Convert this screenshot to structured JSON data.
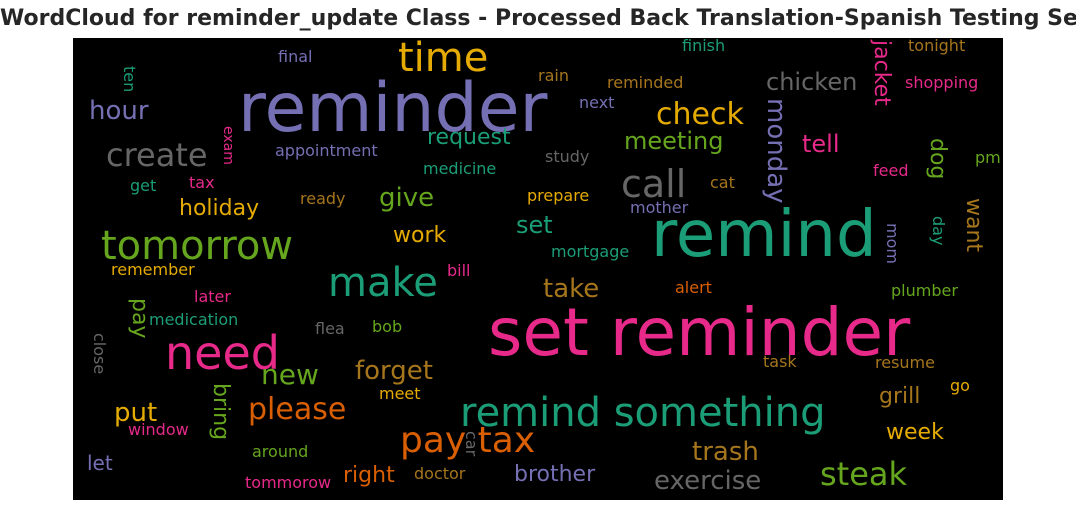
{
  "title": "WordCloud for reminder_update Class - Processed Back Translation-Spanish Testing Set",
  "palette": {
    "background": "#000000",
    "purple": "#7570b3",
    "green": "#1b9e77",
    "pink": "#e7298a",
    "orange": "#d95f02",
    "lime": "#66a61e",
    "gold": "#e6ab02",
    "brown": "#a6761d",
    "gray": "#666666"
  },
  "words": [
    {
      "text": "reminder",
      "color": "#7570b3"
    },
    {
      "text": "set reminder",
      "color": "#e7298a"
    },
    {
      "text": "remind",
      "color": "#1b9e77"
    },
    {
      "text": "tomorrow",
      "color": "#66a61e"
    },
    {
      "text": "need",
      "color": "#e7298a"
    },
    {
      "text": "time",
      "color": "#e6ab02"
    },
    {
      "text": "remind something",
      "color": "#1b9e77"
    },
    {
      "text": "make",
      "color": "#1b9e77"
    },
    {
      "text": "call",
      "color": "#666666"
    },
    {
      "text": "create",
      "color": "#666666"
    },
    {
      "text": "pay tax",
      "color": "#d95f02"
    },
    {
      "text": "check",
      "color": "#e6ab02"
    },
    {
      "text": "steak",
      "color": "#66a61e"
    },
    {
      "text": "please",
      "color": "#d95f02"
    },
    {
      "text": "new",
      "color": "#66a61e"
    },
    {
      "text": "forget",
      "color": "#a6761d"
    },
    {
      "text": "trash",
      "color": "#a6761d"
    },
    {
      "text": "exercise",
      "color": "#666666"
    },
    {
      "text": "hour",
      "color": "#7570b3"
    },
    {
      "text": "give",
      "color": "#66a61e"
    },
    {
      "text": "put",
      "color": "#e6ab02"
    },
    {
      "text": "take",
      "color": "#a6761d"
    },
    {
      "text": "monday",
      "color": "#7570b3"
    },
    {
      "text": "chicken",
      "color": "#666666"
    },
    {
      "text": "meeting",
      "color": "#66a61e"
    },
    {
      "text": "request",
      "color": "#1b9e77"
    },
    {
      "text": "set",
      "color": "#1b9e77"
    },
    {
      "text": "tell",
      "color": "#e7298a"
    },
    {
      "text": "jacket",
      "color": "#e7298a"
    },
    {
      "text": "brother",
      "color": "#7570b3"
    },
    {
      "text": "holiday",
      "color": "#e6ab02"
    },
    {
      "text": "work",
      "color": "#e6ab02"
    },
    {
      "text": "right",
      "color": "#d95f02"
    },
    {
      "text": "week",
      "color": "#e6ab02"
    },
    {
      "text": "grill",
      "color": "#a6761d"
    },
    {
      "text": "want",
      "color": "#a6761d"
    },
    {
      "text": "dog",
      "color": "#66a61e"
    },
    {
      "text": "bring",
      "color": "#66a61e"
    },
    {
      "text": "pay",
      "color": "#66a61e"
    },
    {
      "text": "let",
      "color": "#7570b3"
    },
    {
      "text": "finish",
      "color": "#1b9e77"
    },
    {
      "text": "tonight",
      "color": "#a6761d"
    },
    {
      "text": "shopping",
      "color": "#e7298a"
    },
    {
      "text": "final",
      "color": "#7570b3"
    },
    {
      "text": "ten",
      "color": "#1b9e77"
    },
    {
      "text": "rain",
      "color": "#a6761d"
    },
    {
      "text": "reminded",
      "color": "#a6761d"
    },
    {
      "text": "next",
      "color": "#7570b3"
    },
    {
      "text": "appointment",
      "color": "#7570b3"
    },
    {
      "text": "exam",
      "color": "#e7298a"
    },
    {
      "text": "study",
      "color": "#666666"
    },
    {
      "text": "medicine",
      "color": "#1b9e77"
    },
    {
      "text": "get",
      "color": "#1b9e77"
    },
    {
      "text": "tax",
      "color": "#e7298a"
    },
    {
      "text": "ready",
      "color": "#a6761d"
    },
    {
      "text": "prepare",
      "color": "#e6ab02"
    },
    {
      "text": "cat",
      "color": "#a6761d"
    },
    {
      "text": "mother",
      "color": "#7570b3"
    },
    {
      "text": "feed",
      "color": "#e7298a"
    },
    {
      "text": "pm",
      "color": "#66a61e"
    },
    {
      "text": "day",
      "color": "#1b9e77"
    },
    {
      "text": "mom",
      "color": "#7570b3"
    },
    {
      "text": "remember",
      "color": "#e6ab02"
    },
    {
      "text": "bill",
      "color": "#e7298a"
    },
    {
      "text": "mortgage",
      "color": "#1b9e77"
    },
    {
      "text": "alert",
      "color": "#d95f02"
    },
    {
      "text": "plumber",
      "color": "#66a61e"
    },
    {
      "text": "later",
      "color": "#e7298a"
    },
    {
      "text": "medication",
      "color": "#1b9e77"
    },
    {
      "text": "flea",
      "color": "#666666"
    },
    {
      "text": "bob",
      "color": "#66a61e"
    },
    {
      "text": "close",
      "color": "#666666"
    },
    {
      "text": "task",
      "color": "#a6761d"
    },
    {
      "text": "resume",
      "color": "#a6761d"
    },
    {
      "text": "go",
      "color": "#e6ab02"
    },
    {
      "text": "meet",
      "color": "#e6ab02"
    },
    {
      "text": "window",
      "color": "#e7298a"
    },
    {
      "text": "car",
      "color": "#666666"
    },
    {
      "text": "around",
      "color": "#66a61e"
    },
    {
      "text": "doctor",
      "color": "#a6761d"
    },
    {
      "text": "tommorow",
      "color": "#e7298a"
    }
  ]
}
